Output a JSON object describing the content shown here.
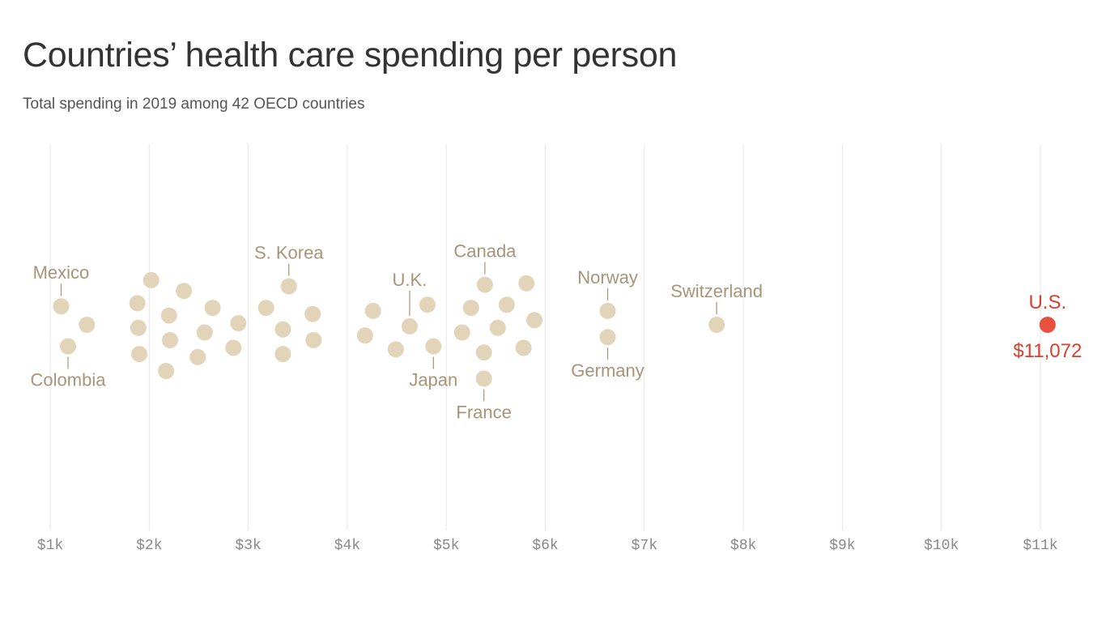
{
  "header": {
    "title": "Countries’ health care spending per person",
    "subtitle": "Total spending in 2019 among 42 OECD countries"
  },
  "colors": {
    "dot": "#e2d4b9",
    "highlight": "#e8513f",
    "label": "#a89478",
    "highlight_label": "#d3412f",
    "grid": "#e6e6e6"
  },
  "chart_data": {
    "type": "scatter",
    "style": "beeswarm",
    "title": "Countries’ health care spending per person",
    "subtitle": "Total spending in 2019 among 42 OECD countries",
    "xlabel": "",
    "ylabel": "",
    "xlim": [
      1000,
      11000
    ],
    "x_ticks": [
      1000,
      2000,
      3000,
      4000,
      5000,
      6000,
      7000,
      8000,
      9000,
      10000,
      11000
    ],
    "x_tick_labels": [
      "$1k",
      "$2k",
      "$3k",
      "$4k",
      "$5k",
      "$6k",
      "$7k",
      "$8k",
      "$9k",
      "$10k",
      "$11k"
    ],
    "grid": true,
    "unit": "US dollars per person",
    "points": [
      {
        "x": 1110,
        "lane": 0.6,
        "label": "Mexico",
        "label_pos": "above"
      },
      {
        "x": 1180,
        "lane": -0.7,
        "label": "Colombia",
        "label_pos": "below"
      },
      {
        "x": 1370,
        "lane": 0
      },
      {
        "x": 1880,
        "lane": 0.7
      },
      {
        "x": 1890,
        "lane": -0.1
      },
      {
        "x": 1900,
        "lane": -0.95
      },
      {
        "x": 2020,
        "lane": 1.45
      },
      {
        "x": 2170,
        "lane": -1.5
      },
      {
        "x": 2200,
        "lane": 0.3
      },
      {
        "x": 2210,
        "lane": -0.5
      },
      {
        "x": 2350,
        "lane": 1.1
      },
      {
        "x": 2490,
        "lane": -1.05
      },
      {
        "x": 2560,
        "lane": -0.25
      },
      {
        "x": 2640,
        "lane": 0.55
      },
      {
        "x": 2850,
        "lane": -0.75
      },
      {
        "x": 2900,
        "lane": 0.05
      },
      {
        "x": 3180,
        "lane": 0.55
      },
      {
        "x": 3350,
        "lane": -0.15
      },
      {
        "x": 3350,
        "lane": -0.95
      },
      {
        "x": 3410,
        "lane": 1.25,
        "label": "S. Korea",
        "label_pos": "above"
      },
      {
        "x": 3650,
        "lane": 0.35
      },
      {
        "x": 3660,
        "lane": -0.5
      },
      {
        "x": 4180,
        "lane": -0.35
      },
      {
        "x": 4260,
        "lane": 0.45
      },
      {
        "x": 4490,
        "lane": -0.8
      },
      {
        "x": 4630,
        "lane": -0.05,
        "label": "U.K.",
        "label_pos": "above"
      },
      {
        "x": 4810,
        "lane": 0.65
      },
      {
        "x": 4870,
        "lane": -0.7,
        "label": "Japan",
        "label_pos": "below"
      },
      {
        "x": 5160,
        "lane": -0.25
      },
      {
        "x": 5250,
        "lane": 0.55
      },
      {
        "x": 5380,
        "lane": -0.9
      },
      {
        "x": 5380,
        "lane": -1.75,
        "label": "France",
        "label_pos": "below"
      },
      {
        "x": 5390,
        "lane": 1.3,
        "label": "Canada",
        "label_pos": "above"
      },
      {
        "x": 5520,
        "lane": -0.1
      },
      {
        "x": 5610,
        "lane": 0.65
      },
      {
        "x": 5780,
        "lane": -0.75
      },
      {
        "x": 5810,
        "lane": 1.35
      },
      {
        "x": 5890,
        "lane": 0.15
      },
      {
        "x": 6630,
        "lane": 0.45,
        "label": "Norway",
        "label_pos": "above"
      },
      {
        "x": 6630,
        "lane": -0.4,
        "label": "Germany",
        "label_pos": "below"
      },
      {
        "x": 7730,
        "lane": 0,
        "label": "Switzerland",
        "label_pos": "above"
      },
      {
        "x": 11072,
        "lane": 0,
        "label": "U.S.",
        "value_label": "$11,072",
        "highlight": true
      }
    ]
  }
}
